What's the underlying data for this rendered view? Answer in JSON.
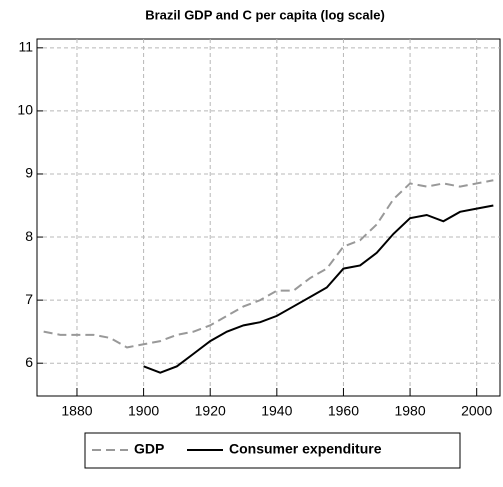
{
  "chart_data": {
    "type": "line",
    "title": "Brazil GDP and C per capita (log scale)",
    "x": [
      1870,
      1875,
      1880,
      1885,
      1890,
      1895,
      1900,
      1905,
      1910,
      1915,
      1920,
      1925,
      1930,
      1935,
      1940,
      1945,
      1950,
      1955,
      1960,
      1965,
      1970,
      1975,
      1980,
      1985,
      1990,
      1995,
      2000,
      2005
    ],
    "series": [
      {
        "name": "GDP",
        "color": "#999999",
        "dash": true,
        "values": [
          6.5,
          6.45,
          6.45,
          6.45,
          6.4,
          6.25,
          6.3,
          6.35,
          6.45,
          6.5,
          6.6,
          6.75,
          6.9,
          7.0,
          7.15,
          7.15,
          7.35,
          7.5,
          7.85,
          7.95,
          8.2,
          8.6,
          8.85,
          8.8,
          8.85,
          8.8,
          8.85,
          8.9
        ]
      },
      {
        "name": "Consumer expenditure",
        "color": "#000000",
        "dash": false,
        "values": [
          null,
          null,
          null,
          null,
          null,
          null,
          5.95,
          5.85,
          5.95,
          6.15,
          6.35,
          6.5,
          6.6,
          6.65,
          6.75,
          6.9,
          7.05,
          7.2,
          7.5,
          7.55,
          7.75,
          8.05,
          8.3,
          8.35,
          8.25,
          8.4,
          8.45,
          8.5
        ]
      }
    ],
    "xlim": [
      1868,
      2007
    ],
    "xticks": [
      1880,
      1900,
      1920,
      1940,
      1960,
      1980,
      2000
    ],
    "ylim": [
      5.48,
      11.14
    ],
    "yticks": [
      6,
      7,
      8,
      9,
      10,
      11
    ],
    "grid": true,
    "legend": "bottom"
  }
}
